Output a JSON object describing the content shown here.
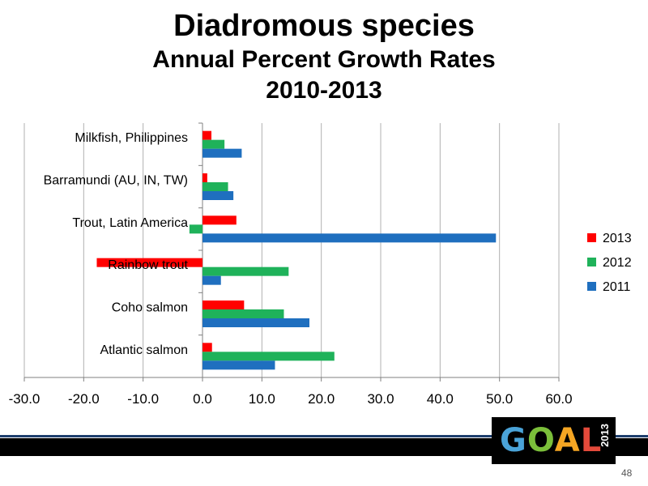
{
  "title": "Diadromous species",
  "subtitle_line1": "Annual Percent Growth Rates",
  "subtitle_line2": "2010-2013",
  "chart_data": {
    "type": "bar",
    "orientation": "horizontal",
    "categories": [
      "Milkfish, Philippines",
      "Barramundi (AU, IN, TW)",
      "Trout, Latin America",
      "Rainbow trout",
      "Coho salmon",
      "Atlantic salmon"
    ],
    "series": [
      {
        "name": "2013",
        "color": "#ff0000",
        "values": [
          1.5,
          0.8,
          5.7,
          -17.8,
          7.0,
          1.6
        ]
      },
      {
        "name": "2012",
        "color": "#1fb25a",
        "values": [
          3.7,
          4.3,
          -2.2,
          14.5,
          13.7,
          22.2
        ]
      },
      {
        "name": "2011",
        "color": "#1f6fbf",
        "values": [
          6.6,
          5.2,
          49.4,
          3.1,
          18.0,
          12.2
        ]
      }
    ],
    "xlim": [
      -30,
      60
    ],
    "xticks": [
      "-30.0",
      "-20.0",
      "-10.0",
      "0.0",
      "10.0",
      "20.0",
      "30.0",
      "40.0",
      "50.0",
      "60.0"
    ],
    "grid": true,
    "legend_placement": "right"
  },
  "logo": {
    "text": "GOAL",
    "year": "2013"
  },
  "page_number": "48"
}
